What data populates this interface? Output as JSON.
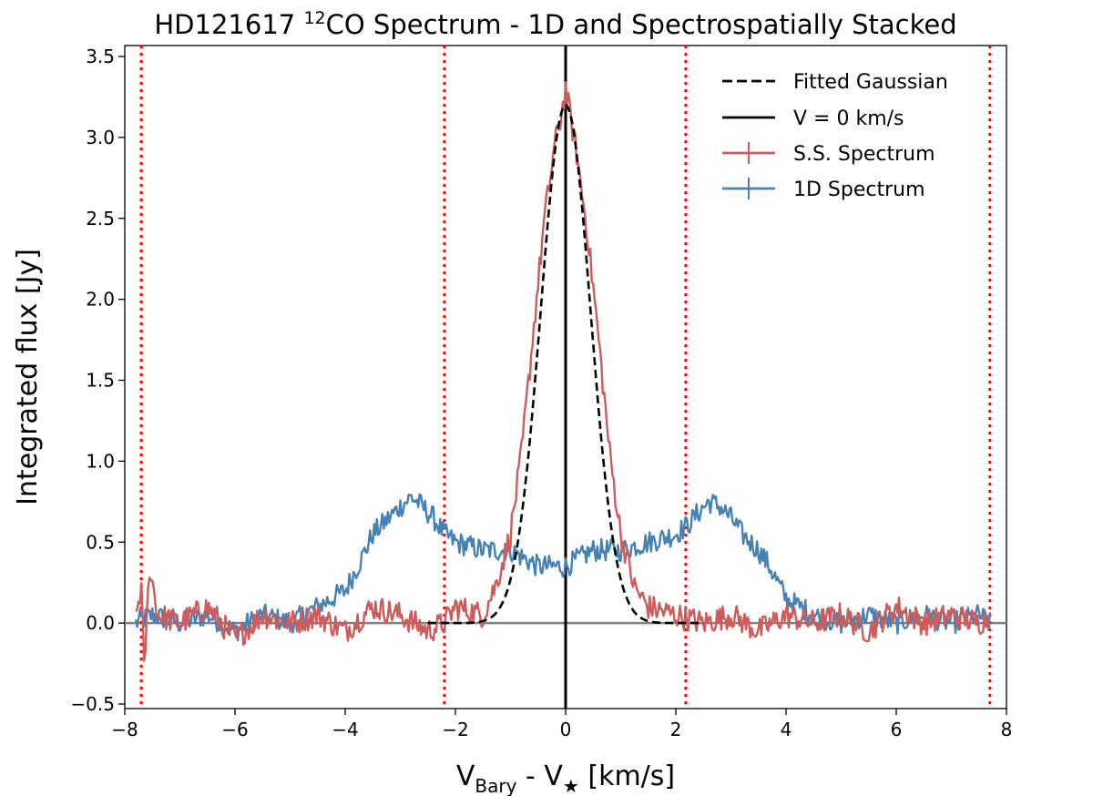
{
  "chart_data": {
    "type": "line",
    "title": {
      "prefix": "HD121617 ",
      "superscript": "12",
      "suffix": "CO Spectrum - 1D and Spectrospatially Stacked"
    },
    "xlabel": {
      "v1": "V",
      "v1_sub": "Bary",
      "mid": " -  V",
      "v2_sub": "★",
      "unit": " [km/s]"
    },
    "ylabel": "Integrated flux [Jy]",
    "xlim": [
      -8,
      8
    ],
    "ylim": [
      -0.5,
      3.55
    ],
    "xticks": [
      -8,
      -6,
      -4,
      -2,
      0,
      2,
      4,
      6,
      8
    ],
    "xtick_labels": [
      "−8",
      "−6",
      "−4",
      "−2",
      "0",
      "2",
      "4",
      "6",
      "8"
    ],
    "yticks": [
      -0.5,
      0.0,
      0.5,
      1.0,
      1.5,
      2.0,
      2.5,
      3.0,
      3.5
    ],
    "ytick_labels": [
      "−0.5",
      "0.0",
      "0.5",
      "1.0",
      "1.5",
      "2.0",
      "2.5",
      "3.0",
      "3.5"
    ],
    "grid": false,
    "legend_position": "upper right",
    "legend": [
      "Fitted Gaussian",
      "V = 0 km/s",
      "S.S. Spectrum",
      "1D Spectrum"
    ],
    "vertical_lines": {
      "zero_velocity": 0,
      "red_dotted": [
        -7.7,
        -2.2,
        2.18,
        7.7
      ]
    },
    "horizontal_line_y": 0,
    "colors": {
      "ss": "#cd5c5c",
      "oned": "#4682b4",
      "dotted": "#ff0000",
      "gauss": "#000000",
      "zero_line": "#808080"
    },
    "series": [
      {
        "name": "S.S. Spectrum",
        "x": [
          -7.8,
          -7.7,
          -7.65,
          -7.55,
          -7.4,
          -7.0,
          -6.5,
          -6.0,
          -5.5,
          -5.0,
          -4.5,
          -4.0,
          -3.5,
          -3.0,
          -2.5,
          -2.2,
          -2.0,
          -1.5,
          -1.25,
          -1.0,
          -0.8,
          -0.6,
          -0.4,
          -0.2,
          -0.1,
          0.0,
          0.1,
          0.2,
          0.4,
          0.6,
          0.8,
          1.0,
          1.25,
          1.5,
          2.0,
          2.5,
          3.0,
          3.5,
          4.0,
          4.5,
          5.0,
          5.5,
          6.0,
          6.5,
          7.0,
          7.5,
          7.7
        ],
        "y": [
          0.05,
          0.22,
          -0.3,
          0.35,
          0.05,
          0.0,
          0.1,
          -0.1,
          0.05,
          0.0,
          0.05,
          -0.05,
          0.1,
          0.05,
          -0.05,
          0.0,
          0.1,
          0.05,
          0.25,
          0.55,
          1.05,
          1.75,
          2.45,
          2.95,
          3.1,
          3.3,
          3.1,
          2.9,
          2.4,
          1.75,
          1.05,
          0.55,
          0.22,
          0.1,
          0.05,
          0.0,
          0.05,
          -0.05,
          0.05,
          0.0,
          0.05,
          -0.05,
          0.1,
          0.0,
          0.05,
          0.0,
          0.05
        ]
      },
      {
        "name": "1D Spectrum",
        "x": [
          -7.8,
          -7.5,
          -7.0,
          -6.5,
          -6.0,
          -5.5,
          -5.0,
          -4.5,
          -4.0,
          -3.7,
          -3.5,
          -3.2,
          -3.0,
          -2.8,
          -2.6,
          -2.4,
          -2.2,
          -2.0,
          -1.5,
          -1.0,
          -0.5,
          0.0,
          0.5,
          1.0,
          1.5,
          2.0,
          2.2,
          2.4,
          2.6,
          2.8,
          3.0,
          3.2,
          3.5,
          3.7,
          4.0,
          4.5,
          5.0,
          5.5,
          6.0,
          6.5,
          7.0,
          7.5,
          7.7
        ],
        "y": [
          0.0,
          0.05,
          0.0,
          0.05,
          -0.05,
          0.05,
          0.0,
          0.1,
          0.2,
          0.4,
          0.55,
          0.65,
          0.72,
          0.78,
          0.72,
          0.65,
          0.55,
          0.5,
          0.45,
          0.45,
          0.35,
          0.35,
          0.45,
          0.45,
          0.5,
          0.55,
          0.6,
          0.68,
          0.75,
          0.72,
          0.65,
          0.55,
          0.45,
          0.35,
          0.15,
          0.05,
          0.0,
          0.05,
          0.0,
          0.05,
          0.0,
          0.05,
          0.0
        ]
      },
      {
        "name": "Fitted Gaussian",
        "function": "gaussian",
        "amplitude": 3.2,
        "center": 0.0,
        "sigma": 0.45
      }
    ]
  }
}
